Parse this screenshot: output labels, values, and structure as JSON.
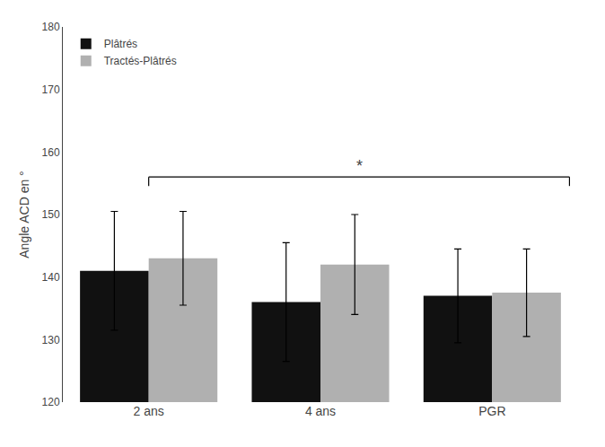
{
  "chart_data": {
    "type": "bar",
    "categories": [
      "2 ans",
      "4 ans",
      "PGR"
    ],
    "series": [
      {
        "name": "Plâtrés",
        "color": "#111111",
        "values": [
          141.0,
          136.0,
          137.0
        ],
        "errors": [
          9.5,
          9.5,
          7.5
        ]
      },
      {
        "name": "Tractés-Plâtrés",
        "color": "#b0b0b0",
        "values": [
          143.0,
          142.0,
          137.5
        ],
        "errors": [
          7.5,
          8.0,
          7.0
        ]
      }
    ],
    "ylabel": "Angle ACD en °",
    "ylim": [
      120,
      180
    ],
    "yticks": [
      120,
      130,
      140,
      150,
      160,
      170,
      180
    ],
    "grid": false,
    "legend": "upper left",
    "annotations": [
      {
        "text": "*",
        "y": 156,
        "from": "2 ans",
        "to": "PGR"
      }
    ]
  }
}
